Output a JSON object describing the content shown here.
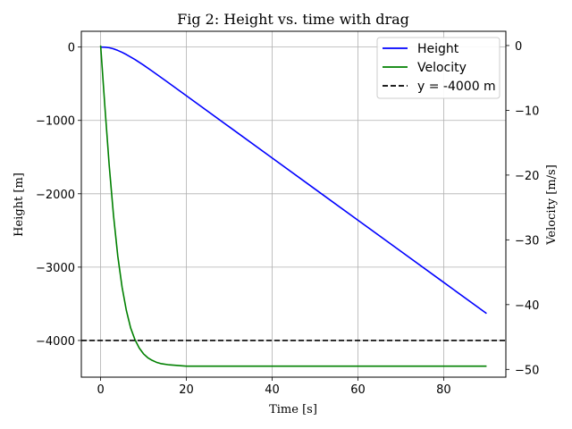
{
  "chart_data": {
    "type": "line",
    "title": "Fig 2: Height vs. time with drag",
    "xlabel": "Time [s]",
    "ylabel": "Height [m]",
    "y2label": "Velocity [m/s]",
    "xlim": [
      -4.5,
      94.5
    ],
    "ylim": [
      -4500,
      215
    ],
    "y2lim": [
      -51.2,
      2.2
    ],
    "xticks": [
      0,
      20,
      40,
      60,
      80
    ],
    "yticks": [
      0,
      -1000,
      -2000,
      -3000,
      -4000
    ],
    "y2ticks": [
      0,
      -10,
      -20,
      -30,
      -40,
      -50
    ],
    "grid": true,
    "legend_position": "top-right",
    "series": [
      {
        "name": "Height",
        "axis": "left",
        "color": "#0000ff",
        "x": [
          0,
          1,
          2,
          3,
          4,
          5,
          6,
          8,
          10,
          12,
          15,
          20,
          30,
          40,
          50,
          60,
          70,
          80,
          90
        ],
        "y": [
          0,
          -2,
          -9,
          -24,
          -46,
          -72,
          -102,
          -170,
          -246,
          -327,
          -452,
          -664,
          -1088,
          -1512,
          -1936,
          -2360,
          -2784,
          -3208,
          -3632
        ]
      },
      {
        "name": "Velocity",
        "axis": "right",
        "color": "#008000",
        "x": [
          0,
          1,
          2,
          3,
          4,
          5,
          6,
          7,
          8,
          9,
          10,
          11,
          12,
          13,
          14,
          16,
          18,
          20,
          30,
          40,
          50,
          60,
          70,
          80,
          90
        ],
        "y": [
          0,
          -9.5,
          -18.5,
          -26.2,
          -32.5,
          -37.3,
          -40.9,
          -43.6,
          -45.4,
          -46.7,
          -47.6,
          -48.2,
          -48.6,
          -48.9,
          -49.1,
          -49.3,
          -49.4,
          -49.5,
          -49.5,
          -49.5,
          -49.5,
          -49.5,
          -49.5,
          -49.5,
          -49.5
        ]
      },
      {
        "name": "y = -4000 m",
        "axis": "left",
        "color": "#000000",
        "style": "dashed",
        "x": [
          -4.5,
          94.5
        ],
        "y": [
          -4000,
          -4000
        ]
      }
    ]
  },
  "ticks": {
    "x": [
      "0",
      "20",
      "40",
      "60",
      "80"
    ],
    "y": [
      "0",
      "−1000",
      "−2000",
      "−3000",
      "−4000"
    ],
    "y2": [
      "0",
      "−10",
      "−20",
      "−30",
      "−40",
      "−50"
    ]
  }
}
